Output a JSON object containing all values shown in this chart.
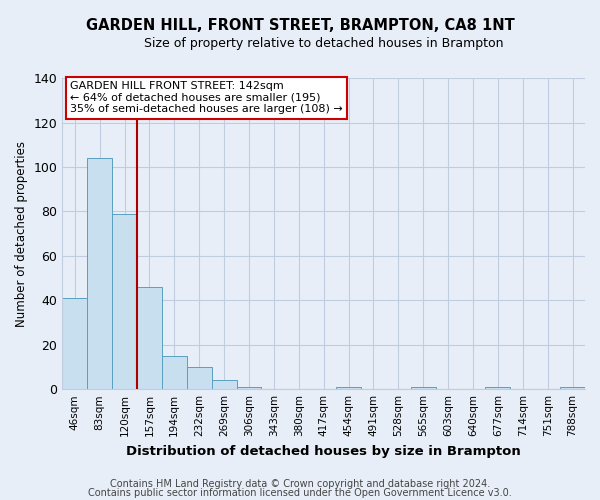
{
  "title": "GARDEN HILL, FRONT STREET, BRAMPTON, CA8 1NT",
  "subtitle": "Size of property relative to detached houses in Brampton",
  "xlabel": "Distribution of detached houses by size in Brampton",
  "ylabel": "Number of detached properties",
  "bar_labels": [
    "46sqm",
    "83sqm",
    "120sqm",
    "157sqm",
    "194sqm",
    "232sqm",
    "269sqm",
    "306sqm",
    "343sqm",
    "380sqm",
    "417sqm",
    "454sqm",
    "491sqm",
    "528sqm",
    "565sqm",
    "603sqm",
    "640sqm",
    "677sqm",
    "714sqm",
    "751sqm",
    "788sqm"
  ],
  "bar_values": [
    41,
    104,
    79,
    46,
    15,
    10,
    4,
    1,
    0,
    0,
    0,
    1,
    0,
    0,
    1,
    0,
    0,
    1,
    0,
    0,
    1
  ],
  "bar_color": "#c8dff0",
  "bar_edge_color": "#5a9fc0",
  "vline_x": 2.5,
  "vline_color": "#aa0000",
  "ylim": [
    0,
    140
  ],
  "yticks": [
    0,
    20,
    40,
    60,
    80,
    100,
    120,
    140
  ],
  "annotation_title": "GARDEN HILL FRONT STREET: 142sqm",
  "annotation_line1": "← 64% of detached houses are smaller (195)",
  "annotation_line2": "35% of semi-detached houses are larger (108) →",
  "annotation_box_color": "#ffffff",
  "annotation_box_edge_color": "#cc0000",
  "footer_line1": "Contains HM Land Registry data © Crown copyright and database right 2024.",
  "footer_line2": "Contains public sector information licensed under the Open Government Licence v3.0.",
  "background_color": "#e8eef8",
  "grid_color": "#c0cce0"
}
